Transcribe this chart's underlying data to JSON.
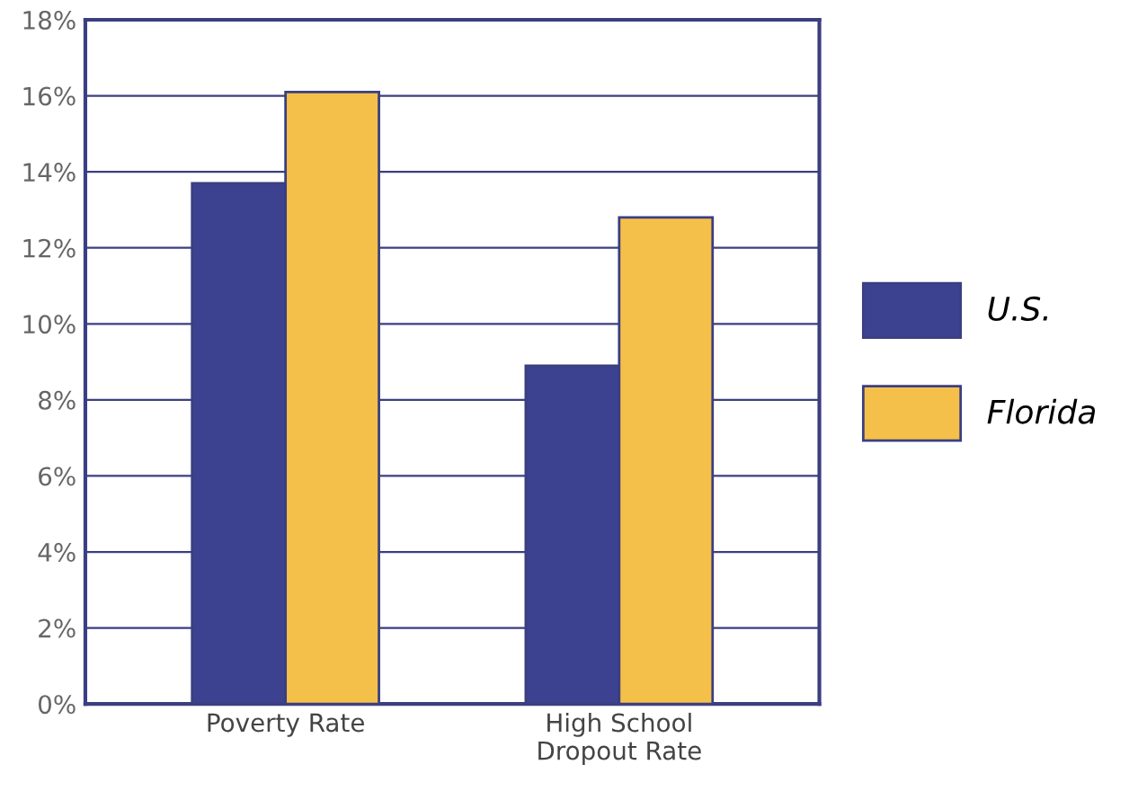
{
  "chart_data": {
    "type": "bar",
    "categories": [
      "Poverty Rate",
      "High School\nDropout Rate"
    ],
    "series": [
      {
        "name": "U.S.",
        "color": "#3d4290",
        "values": [
          13.7,
          8.9
        ]
      },
      {
        "name": "Florida",
        "color": "#f5c04a",
        "values": [
          16.1,
          12.8
        ]
      }
    ],
    "ylim": [
      0,
      18
    ],
    "yticks": [
      {
        "value": 0,
        "label": "0%"
      },
      {
        "value": 2,
        "label": "2%"
      },
      {
        "value": 4,
        "label": "4%"
      },
      {
        "value": 6,
        "label": "6%"
      },
      {
        "value": 8,
        "label": "8%"
      },
      {
        "value": 10,
        "label": "10%"
      },
      {
        "value": 12,
        "label": "12%"
      },
      {
        "value": 14,
        "label": "14%"
      },
      {
        "value": 16,
        "label": "16%"
      },
      {
        "value": 18,
        "label": "18%"
      }
    ],
    "grid": "y",
    "legend": "right"
  }
}
